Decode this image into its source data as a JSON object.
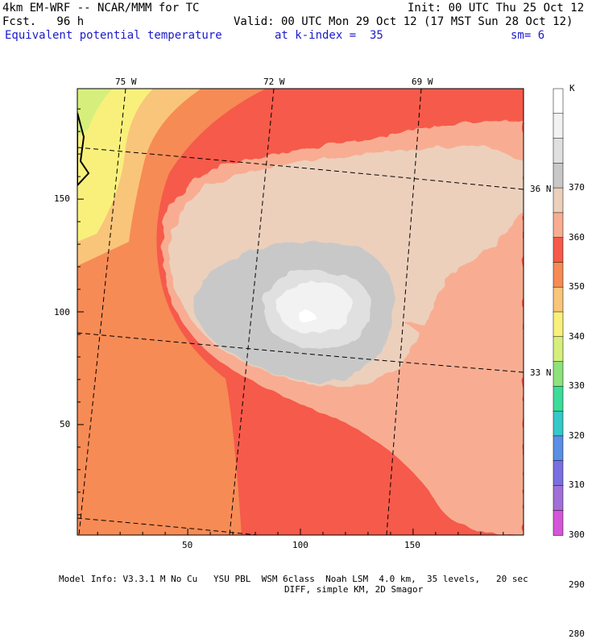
{
  "header": {
    "model": "4km EM-WRF -- NCAR/MMM for TC",
    "init": "Init: 00 UTC Thu 25 Oct 12",
    "fcst": "Fcst.   96 h",
    "valid": "Valid: 00 UTC Mon 29 Oct 12 (17 MST Sun 28 Oct 12)",
    "field": "Equivalent potential temperature",
    "level": "at k-index =  35",
    "smoothing": "sm= 6"
  },
  "map": {
    "lon_labels": [
      "75 W",
      "72 W",
      "69 W"
    ],
    "lat_labels": [
      "36 N",
      "33 N"
    ],
    "x_ticks": [
      "50",
      "100",
      "150"
    ],
    "y_ticks": [
      "150",
      "100",
      "50"
    ],
    "x_range": [
      1,
      199
    ],
    "y_range": [
      1,
      199
    ]
  },
  "colorbar": {
    "unit": "K",
    "labels": [
      "370",
      "360",
      "350",
      "340",
      "330",
      "320",
      "310",
      "300",
      "290",
      "280"
    ],
    "colors": [
      "#ffffff",
      "#f2f2f2",
      "#e0e0e0",
      "#c8c8c8",
      "#ecd0bc",
      "#f8ad92",
      "#f65a4a",
      "#f68b55",
      "#f9c57a",
      "#f9f07c",
      "#d6ef7c",
      "#8ee27c",
      "#3ddc9a",
      "#36c8c8",
      "#5a8fe6",
      "#7a6fe0",
      "#a070d8",
      "#d456d8"
    ]
  },
  "footer": {
    "line1": "Model Info: V3.3.1 M No Cu   YSU PBL  WSM 6class  Noah LSM  4.0 km,  35 levels,   20 sec",
    "line2": "DIFF, simple KM, 2D Smagor"
  }
}
